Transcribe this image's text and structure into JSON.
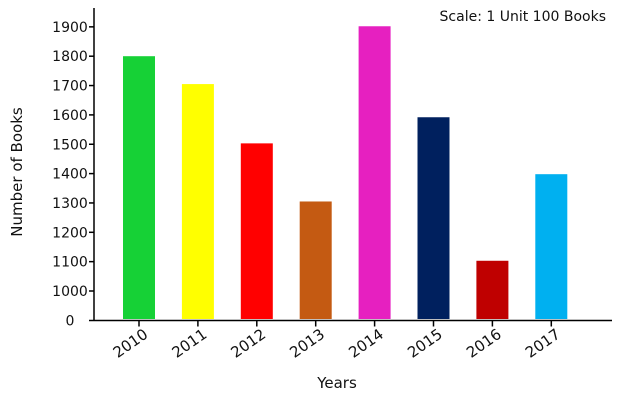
{
  "chart_data": {
    "type": "bar",
    "note": "Scale: 1 Unit 100 Books",
    "xlabel": "Years",
    "ylabel": "Number of Books",
    "categories": [
      "2010",
      "2011",
      "2012",
      "2013",
      "2014",
      "2015",
      "2016",
      "2017"
    ],
    "values": [
      1800,
      1705,
      1503,
      1305,
      1902,
      1592,
      1103,
      1398
    ],
    "colors": [
      "#16d136",
      "#ffff00",
      "#ff0000",
      "#c45a12",
      "#e620c0",
      "#00205e",
      "#bf0000",
      "#00b0f0"
    ],
    "y_ticks": [
      "0",
      "1000",
      "1100",
      "1200",
      "1300",
      "1400",
      "1500",
      "1600",
      "1700",
      "1800",
      "1900"
    ],
    "y_tick_values": [
      900,
      1000,
      1100,
      1200,
      1300,
      1400,
      1500,
      1600,
      1700,
      1800,
      1900
    ],
    "ylim": [
      900,
      1950
    ],
    "axis_break": "baseline labelled 0, scale starts at 900",
    "grid": false,
    "legend": "none"
  }
}
